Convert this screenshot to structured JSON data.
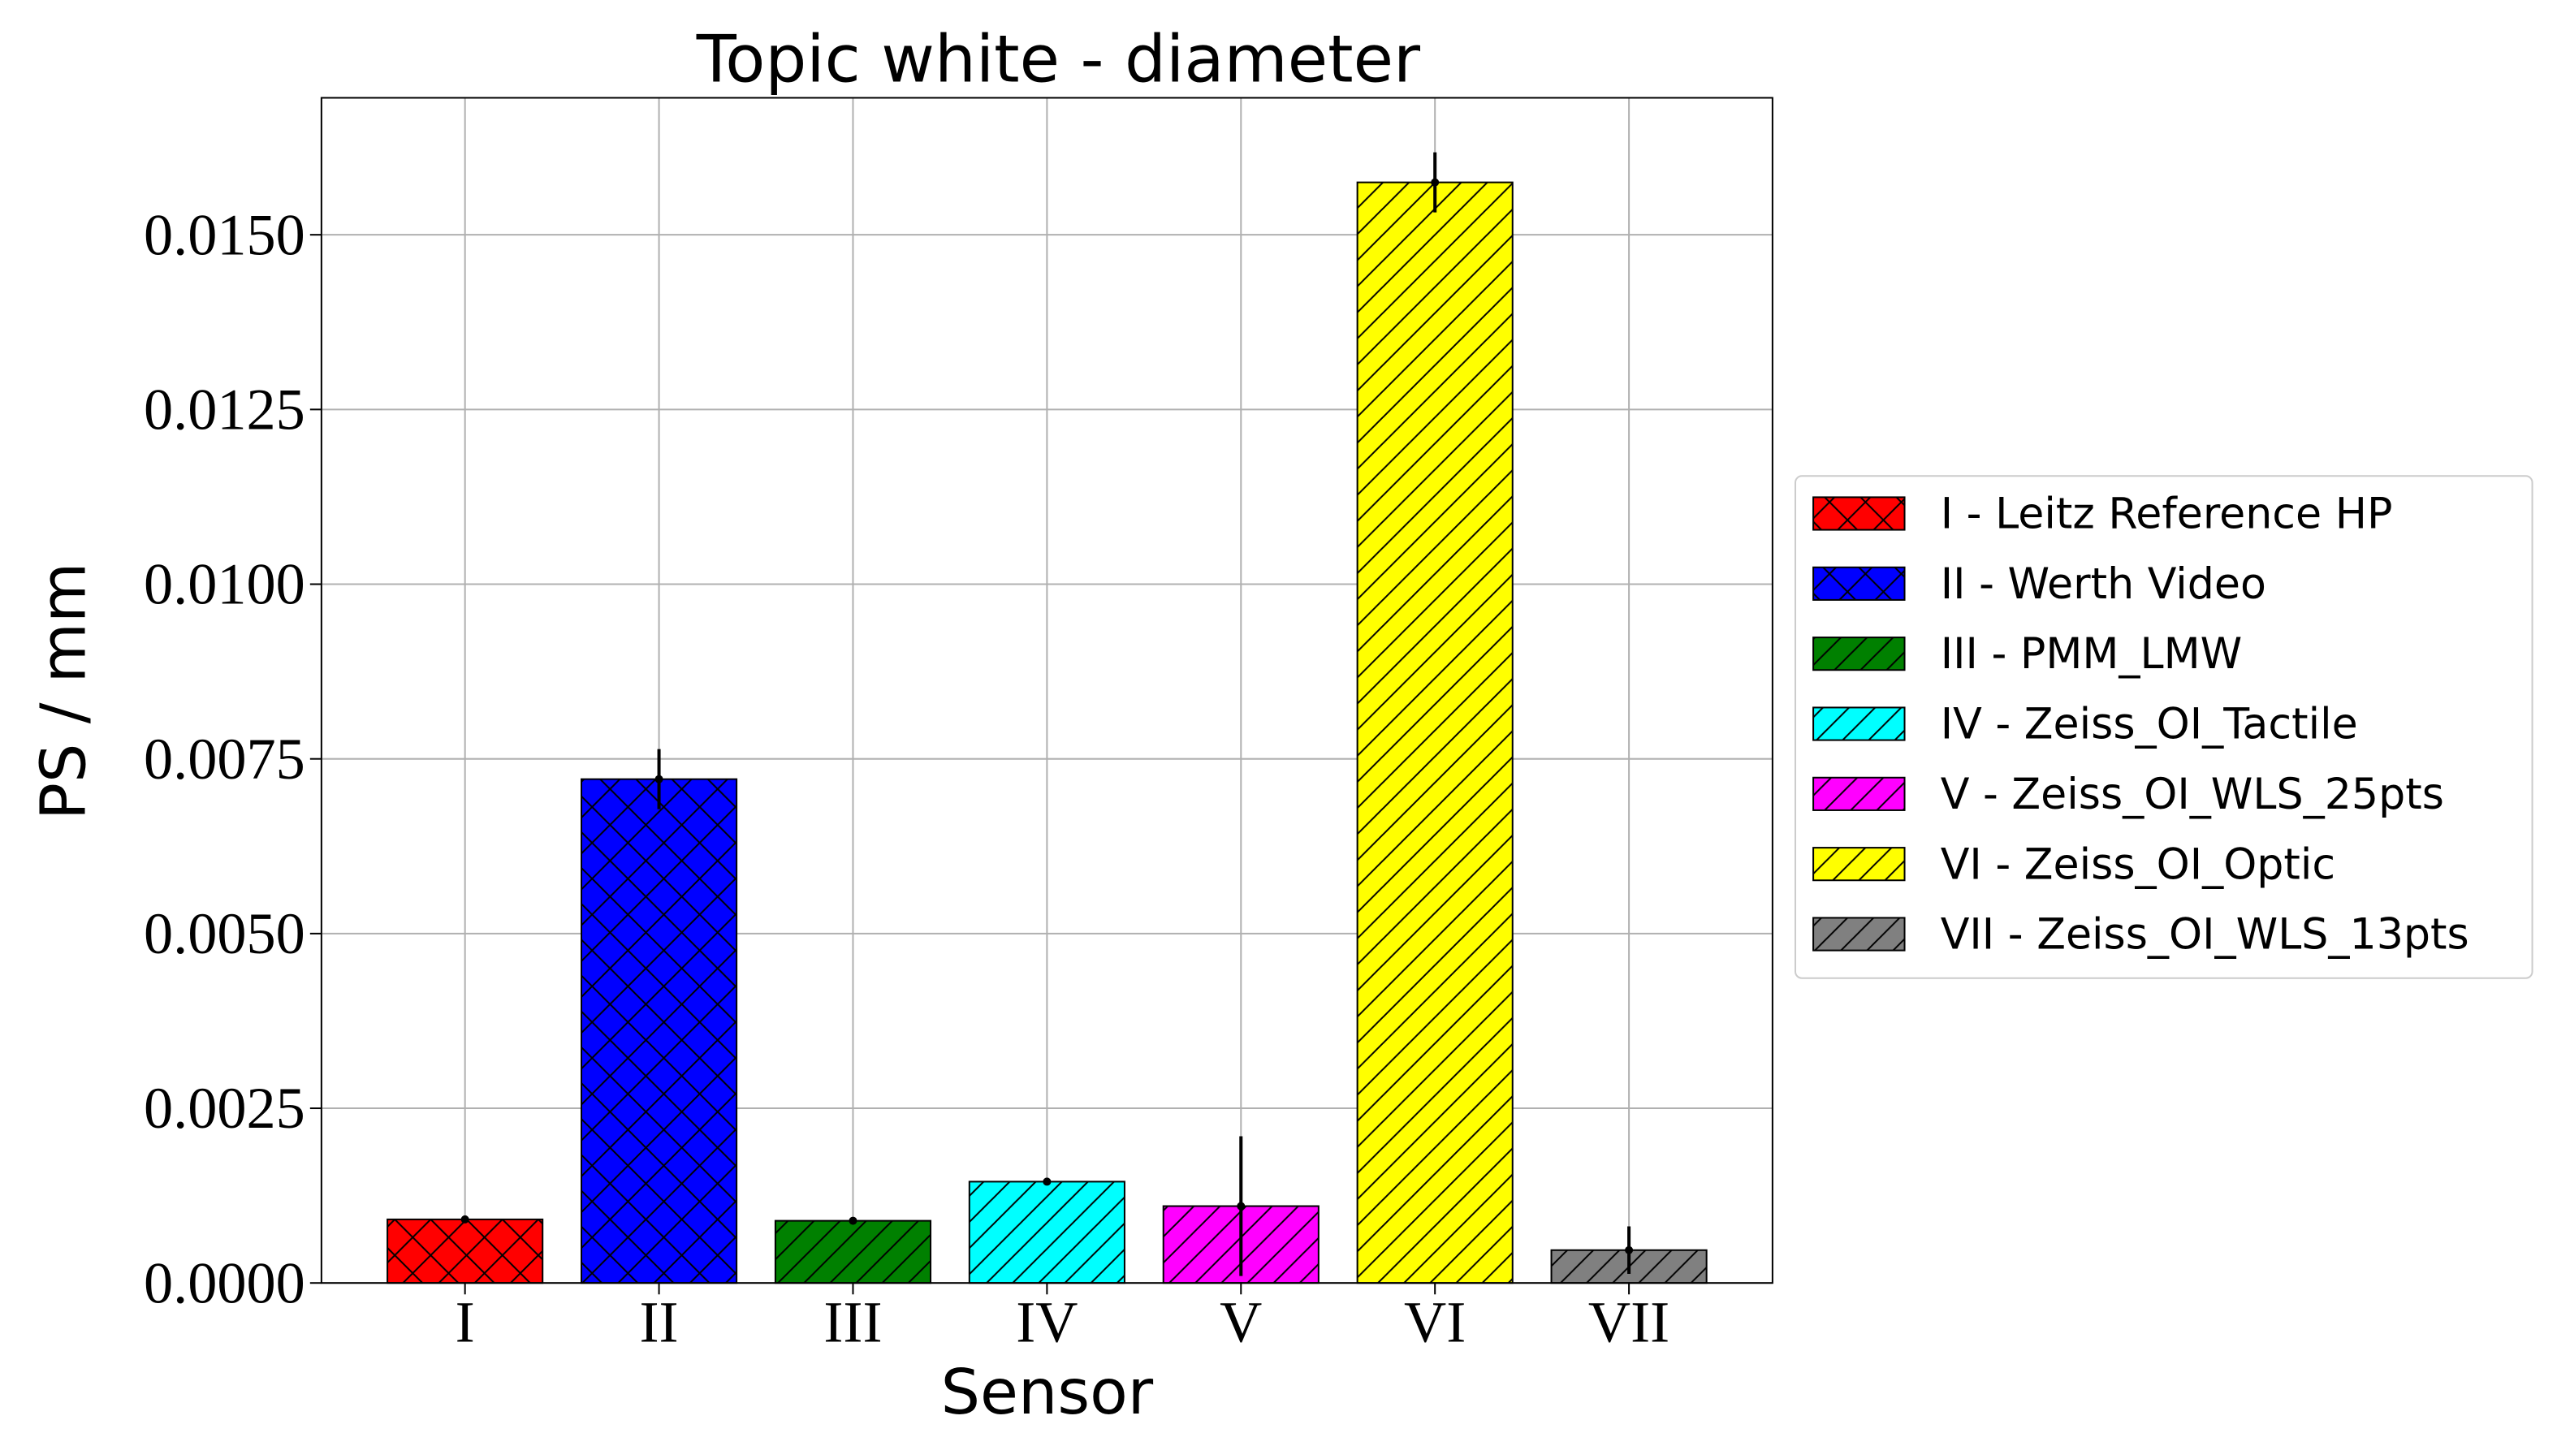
{
  "chart_data": {
    "type": "bar",
    "title": "Topic white - diameter",
    "x_label": "Sensor",
    "y_label": "PS / mm",
    "categories": [
      "I",
      "II",
      "III",
      "IV",
      "V",
      "VI",
      "VII"
    ],
    "values": [
      0.00091,
      0.00721,
      0.00089,
      0.00145,
      0.0011,
      0.01575,
      0.00047
    ],
    "errors": [
      2e-05,
      0.00043,
      1e-05,
      2e-05,
      0.001,
      0.00043,
      0.00034
    ],
    "colors": [
      "#ff0000",
      "#0000ff",
      "#008000",
      "#00ffff",
      "#ff00ff",
      "#ffff00",
      "#808080"
    ],
    "hatches": [
      "x",
      "x",
      "/",
      "/",
      "/",
      "/",
      "/"
    ],
    "legend": [
      "I - Leitz Reference HP",
      "II - Werth Video",
      "III - PMM_LMW",
      "IV - Zeiss_OI_Tactile",
      "V - Zeiss_OI_WLS_25pts",
      "VI - Zeiss_OI_Optic",
      "VII - Zeiss_OI_WLS_13pts"
    ],
    "ylim": [
      0,
      0.01696
    ],
    "yticks": [
      {
        "value": 0,
        "label": "0.0000"
      },
      {
        "value": 0.0025,
        "label": "0.0025"
      },
      {
        "value": 0.005,
        "label": "0.0050"
      },
      {
        "value": 0.0075,
        "label": "0.0075"
      },
      {
        "value": 0.01,
        "label": "0.0100"
      },
      {
        "value": 0.0125,
        "label": "0.0125"
      },
      {
        "value": 0.015,
        "label": "0.0150"
      }
    ],
    "grid": true,
    "legend_position": "right"
  }
}
